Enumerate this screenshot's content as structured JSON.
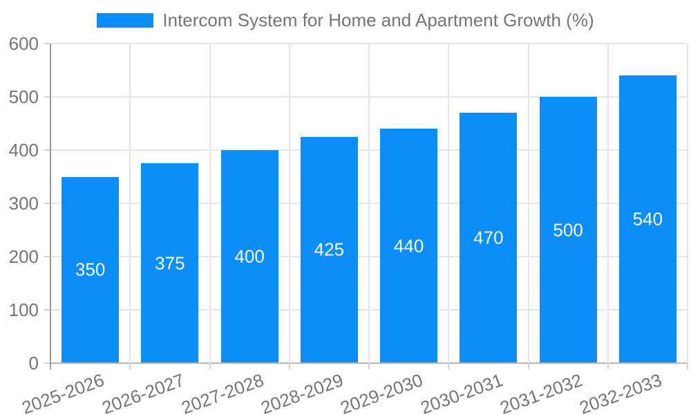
{
  "legend": {
    "label": "Intercom System for Home and Apartment Growth (%)"
  },
  "chart_data": {
    "type": "bar",
    "title": "Intercom System for Home and Apartment Growth (%)",
    "categories": [
      "2025-2026",
      "2026-2027",
      "2027-2028",
      "2028-2029",
      "2029-2030",
      "2030-2031",
      "2031-2032",
      "2032-2033"
    ],
    "values": [
      350,
      375,
      400,
      425,
      440,
      470,
      500,
      540
    ],
    "xlabel": "",
    "ylabel": "",
    "ylim": [
      0,
      600
    ],
    "y_ticks": [
      0,
      100,
      200,
      300,
      400,
      500,
      600
    ],
    "grid": true,
    "legend_position": "top",
    "value_labels_inside_bars": true
  },
  "colors": {
    "bar": "#0b8ef9",
    "grid": "#e6e6e6",
    "tick": "#d2d2d2",
    "axis_y": "#999999",
    "axis_x": "#b5b5b5",
    "text": "#757575",
    "value_text": "#ffffff",
    "background": "#ffffff"
  }
}
